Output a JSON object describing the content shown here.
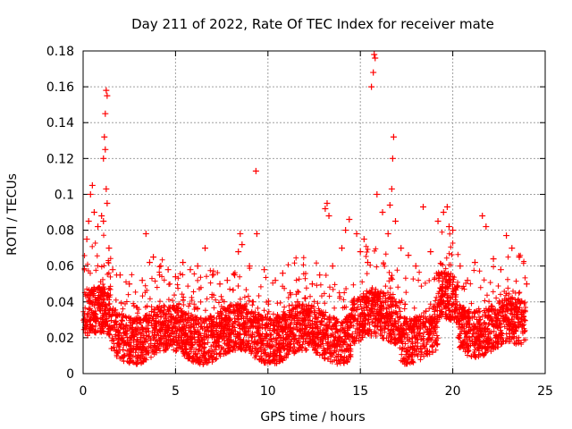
{
  "chart_data": {
    "type": "scatter",
    "title": "Day 211 of 2022, Rate Of TEC Index for receiver mate",
    "xlabel": "GPS time / hours",
    "ylabel": "ROTI / TECUs",
    "xlim": [
      0,
      25
    ],
    "ylim": [
      0,
      0.18
    ],
    "x_ticks": [
      0,
      5,
      10,
      15,
      20,
      25
    ],
    "x_tick_labels": [
      "0",
      "5",
      "10",
      "15",
      "20",
      "25"
    ],
    "y_ticks": [
      0,
      0.02,
      0.04,
      0.06,
      0.08,
      0.1,
      0.12,
      0.14,
      0.16,
      0.18
    ],
    "y_tick_labels": [
      "0",
      "0.02",
      "0.04",
      "0.06",
      "0.08",
      "0.1",
      "0.12",
      "0.14",
      "0.16",
      "0.18"
    ],
    "grid": true,
    "marker": "plus",
    "color": "#ff0000",
    "series": [
      {
        "points": [
          [
            0.2,
            0.075
          ],
          [
            0.3,
            0.085
          ],
          [
            0.4,
            0.1
          ],
          [
            0.5,
            0.105
          ],
          [
            0.6,
            0.09
          ],
          [
            0.8,
            0.082
          ],
          [
            1.0,
            0.088
          ],
          [
            1.1,
            0.12
          ],
          [
            1.15,
            0.132
          ],
          [
            1.2,
            0.145
          ],
          [
            1.25,
            0.158
          ],
          [
            1.3,
            0.155
          ],
          [
            1.2,
            0.125
          ],
          [
            1.25,
            0.103
          ],
          [
            1.3,
            0.095
          ],
          [
            1.1,
            0.085
          ],
          [
            1.4,
            0.07
          ],
          [
            1.6,
            0.058
          ],
          [
            2.0,
            0.055
          ],
          [
            2.5,
            0.05
          ],
          [
            3.2,
            0.052
          ],
          [
            3.4,
            0.078
          ],
          [
            3.6,
            0.062
          ],
          [
            3.8,
            0.065
          ],
          [
            4.2,
            0.06
          ],
          [
            4.6,
            0.058
          ],
          [
            5.0,
            0.054
          ],
          [
            5.4,
            0.062
          ],
          [
            5.8,
            0.058
          ],
          [
            6.2,
            0.06
          ],
          [
            6.6,
            0.07
          ],
          [
            7.0,
            0.055
          ],
          [
            7.4,
            0.05
          ],
          [
            7.8,
            0.052
          ],
          [
            8.2,
            0.055
          ],
          [
            8.4,
            0.068
          ],
          [
            8.5,
            0.078
          ],
          [
            8.6,
            0.072
          ],
          [
            9.0,
            0.06
          ],
          [
            9.35,
            0.113
          ],
          [
            9.4,
            0.078
          ],
          [
            9.8,
            0.058
          ],
          [
            10.4,
            0.052
          ],
          [
            10.8,
            0.056
          ],
          [
            11.2,
            0.045
          ],
          [
            11.6,
            0.04
          ],
          [
            12.0,
            0.042
          ],
          [
            12.4,
            0.05
          ],
          [
            12.8,
            0.055
          ],
          [
            13.1,
            0.092
          ],
          [
            13.2,
            0.095
          ],
          [
            13.3,
            0.088
          ],
          [
            13.5,
            0.06
          ],
          [
            14.0,
            0.07
          ],
          [
            14.2,
            0.08
          ],
          [
            14.4,
            0.086
          ],
          [
            14.8,
            0.078
          ],
          [
            15.0,
            0.068
          ],
          [
            15.2,
            0.075
          ],
          [
            15.4,
            0.062
          ],
          [
            15.6,
            0.16
          ],
          [
            15.7,
            0.168
          ],
          [
            15.75,
            0.178
          ],
          [
            15.8,
            0.176
          ],
          [
            15.9,
            0.1
          ],
          [
            16.2,
            0.09
          ],
          [
            16.5,
            0.078
          ],
          [
            16.6,
            0.094
          ],
          [
            16.7,
            0.103
          ],
          [
            16.75,
            0.12
          ],
          [
            16.8,
            0.132
          ],
          [
            16.9,
            0.085
          ],
          [
            17.2,
            0.07
          ],
          [
            17.6,
            0.066
          ],
          [
            18.0,
            0.06
          ],
          [
            18.4,
            0.093
          ],
          [
            18.8,
            0.068
          ],
          [
            19.2,
            0.085
          ],
          [
            19.5,
            0.09
          ],
          [
            19.7,
            0.093
          ],
          [
            19.8,
            0.082
          ],
          [
            20.0,
            0.08
          ],
          [
            20.4,
            0.06
          ],
          [
            20.8,
            0.052
          ],
          [
            21.2,
            0.062
          ],
          [
            21.6,
            0.088
          ],
          [
            21.8,
            0.082
          ],
          [
            22.2,
            0.064
          ],
          [
            22.6,
            0.058
          ],
          [
            22.9,
            0.077
          ],
          [
            23.2,
            0.07
          ],
          [
            23.6,
            0.065
          ],
          [
            24.0,
            0.05
          ]
        ]
      }
    ]
  }
}
